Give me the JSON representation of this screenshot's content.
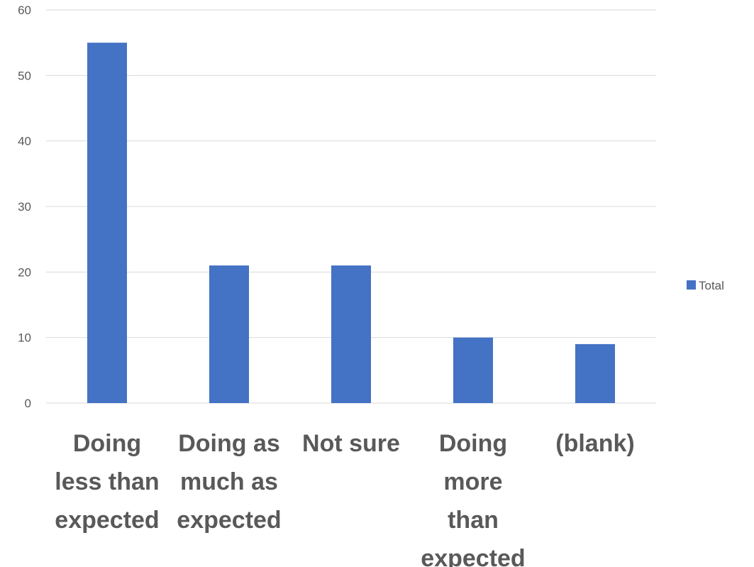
{
  "chart_data": {
    "type": "bar",
    "categories": [
      [
        "Doing",
        "less than",
        "expected"
      ],
      [
        "Doing as",
        "much as",
        "expected"
      ],
      [
        "Not sure"
      ],
      [
        "Doing",
        "more",
        "than",
        "expected"
      ],
      [
        "(blank)"
      ]
    ],
    "series": [
      {
        "name": "Total",
        "values": [
          55,
          21,
          21,
          10,
          9
        ],
        "color": "#4472C4"
      }
    ],
    "title": "",
    "xlabel": "",
    "ylabel": "",
    "ylim": [
      0,
      60
    ],
    "yticks": [
      0,
      10,
      20,
      30,
      40,
      50,
      60
    ],
    "grid": true,
    "gridColor": "#D9D9D9",
    "legend": {
      "position": "right",
      "entries": [
        "Total"
      ]
    }
  }
}
